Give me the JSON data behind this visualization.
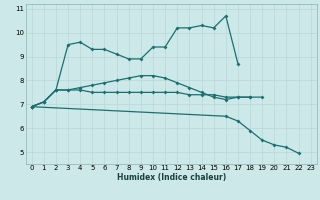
{
  "xlabel": "Humidex (Indice chaleur)",
  "x": [
    0,
    1,
    2,
    3,
    4,
    5,
    6,
    7,
    8,
    9,
    10,
    11,
    12,
    13,
    14,
    15,
    16,
    17,
    18,
    19,
    20,
    21,
    22,
    23
  ],
  "line1": [
    6.9,
    7.1,
    7.6,
    9.5,
    9.6,
    9.3,
    9.3,
    9.1,
    8.9,
    8.9,
    9.4,
    9.4,
    10.2,
    10.2,
    10.3,
    10.2,
    10.7,
    8.7,
    null,
    null,
    null,
    null,
    null,
    null
  ],
  "line2": [
    6.9,
    7.1,
    7.6,
    7.6,
    7.6,
    7.5,
    7.5,
    7.5,
    7.5,
    7.5,
    7.5,
    7.5,
    7.5,
    7.4,
    7.4,
    7.4,
    7.3,
    7.3,
    7.3,
    7.3,
    null,
    null,
    null,
    null
  ],
  "line3": [
    6.9,
    7.1,
    7.6,
    7.6,
    7.7,
    7.8,
    7.9,
    8.0,
    8.1,
    8.2,
    8.2,
    8.1,
    7.9,
    7.7,
    7.5,
    7.3,
    7.2,
    7.3,
    7.3,
    null,
    null,
    null,
    null,
    null
  ],
  "line4": [
    6.9,
    null,
    null,
    null,
    null,
    null,
    null,
    null,
    null,
    null,
    null,
    null,
    null,
    null,
    null,
    null,
    6.5,
    6.3,
    5.9,
    5.5,
    5.3,
    5.2,
    4.95,
    null
  ],
  "bg_color": "#cce8e8",
  "grid_color": "#b8d8d8",
  "line_color": "#1a7070",
  "ylim": [
    4.5,
    11.2
  ],
  "yticks": [
    5,
    6,
    7,
    8,
    9,
    10,
    11
  ],
  "xticks": [
    0,
    1,
    2,
    3,
    4,
    5,
    6,
    7,
    8,
    9,
    10,
    11,
    12,
    13,
    14,
    15,
    16,
    17,
    18,
    19,
    20,
    21,
    22,
    23
  ],
  "tick_fontsize": 5.0,
  "xlabel_fontsize": 5.5,
  "marker_size": 2.0,
  "line_width": 0.9
}
